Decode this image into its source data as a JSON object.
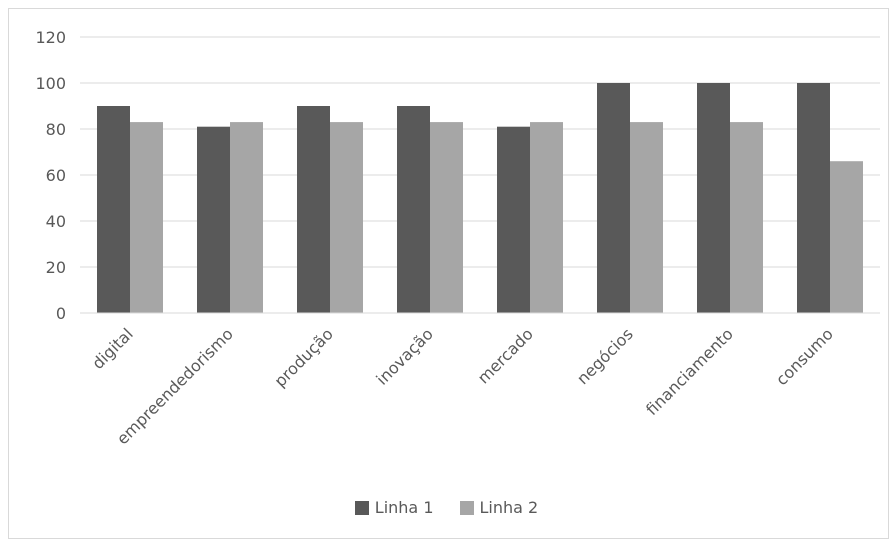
{
  "chart_data": {
    "type": "bar",
    "categories": [
      "digital",
      "empreendedorismo",
      "produção",
      "inovação",
      "mercado",
      "negócios",
      "financiamento",
      "consumo"
    ],
    "series": [
      {
        "name": "Linha 1",
        "values": [
          90,
          81,
          90,
          90,
          81,
          100,
          100,
          100
        ],
        "color": "#595959"
      },
      {
        "name": "Linha 2",
        "values": [
          83,
          83,
          83,
          83,
          83,
          83,
          83,
          66
        ],
        "color": "#a6a6a6"
      }
    ],
    "yticks": [
      "0",
      "20",
      "40",
      "60",
      "80",
      "100",
      "120"
    ],
    "ylim": [
      0,
      120
    ],
    "grid": true,
    "legend_position": "bottom"
  }
}
